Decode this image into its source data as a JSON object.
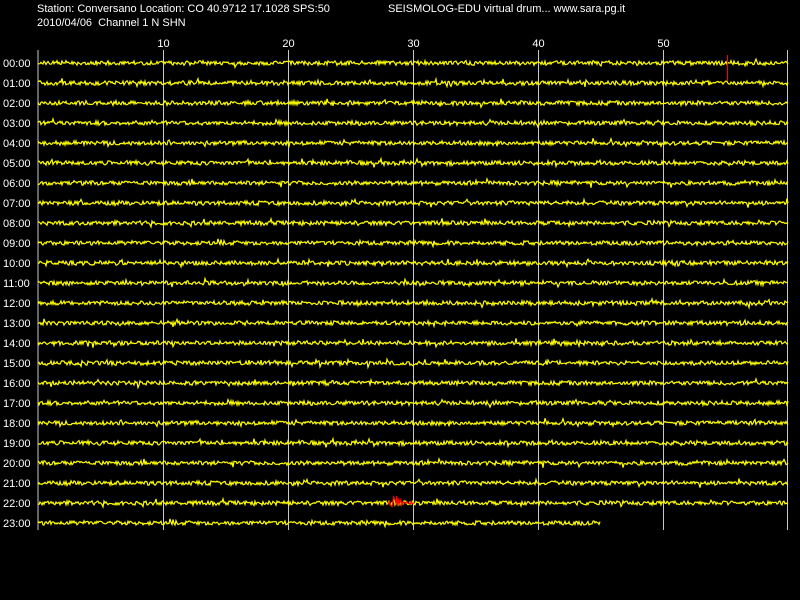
{
  "header": {
    "station_line": "Station: Conversano Location: CO 40.9712 17.1028 SPS:50",
    "date_line": "2010/04/06  Channel 1 N SHN",
    "title": "SEISMOLOG-EDU virtual drum... www.sara.pg.it"
  },
  "colors": {
    "background": "#000000",
    "trace": "#ffff00",
    "event": "#ff0000",
    "grid": "#c8c8c8",
    "text": "#ffffff"
  },
  "chart_data": {
    "type": "line",
    "title": "SEISMOLOG-EDU virtual drum... www.sara.pg.it",
    "xlabel": "",
    "ylabel": "",
    "x_unit_range": [
      0,
      60
    ],
    "x_ticks": [
      "10",
      "20",
      "30",
      "40",
      "50"
    ],
    "x_tick_values": [
      10,
      20,
      30,
      40,
      50
    ],
    "grid": true,
    "rows": [
      "00:00",
      "01:00",
      "02:00",
      "03:00",
      "04:00",
      "05:00",
      "06:00",
      "07:00",
      "08:00",
      "09:00",
      "10:00",
      "11:00",
      "12:00",
      "13:00",
      "14:00",
      "15:00",
      "16:00",
      "17:00",
      "18:00",
      "19:00",
      "20:00",
      "21:00",
      "22:00",
      "23:00"
    ],
    "last_row_end_minute": 45,
    "events": [
      {
        "row": "00:00",
        "minute": 55.1,
        "kind": "spike"
      },
      {
        "row": "22:00",
        "minute_start": 28.0,
        "minute_end": 30.1,
        "kind": "burst"
      }
    ]
  }
}
